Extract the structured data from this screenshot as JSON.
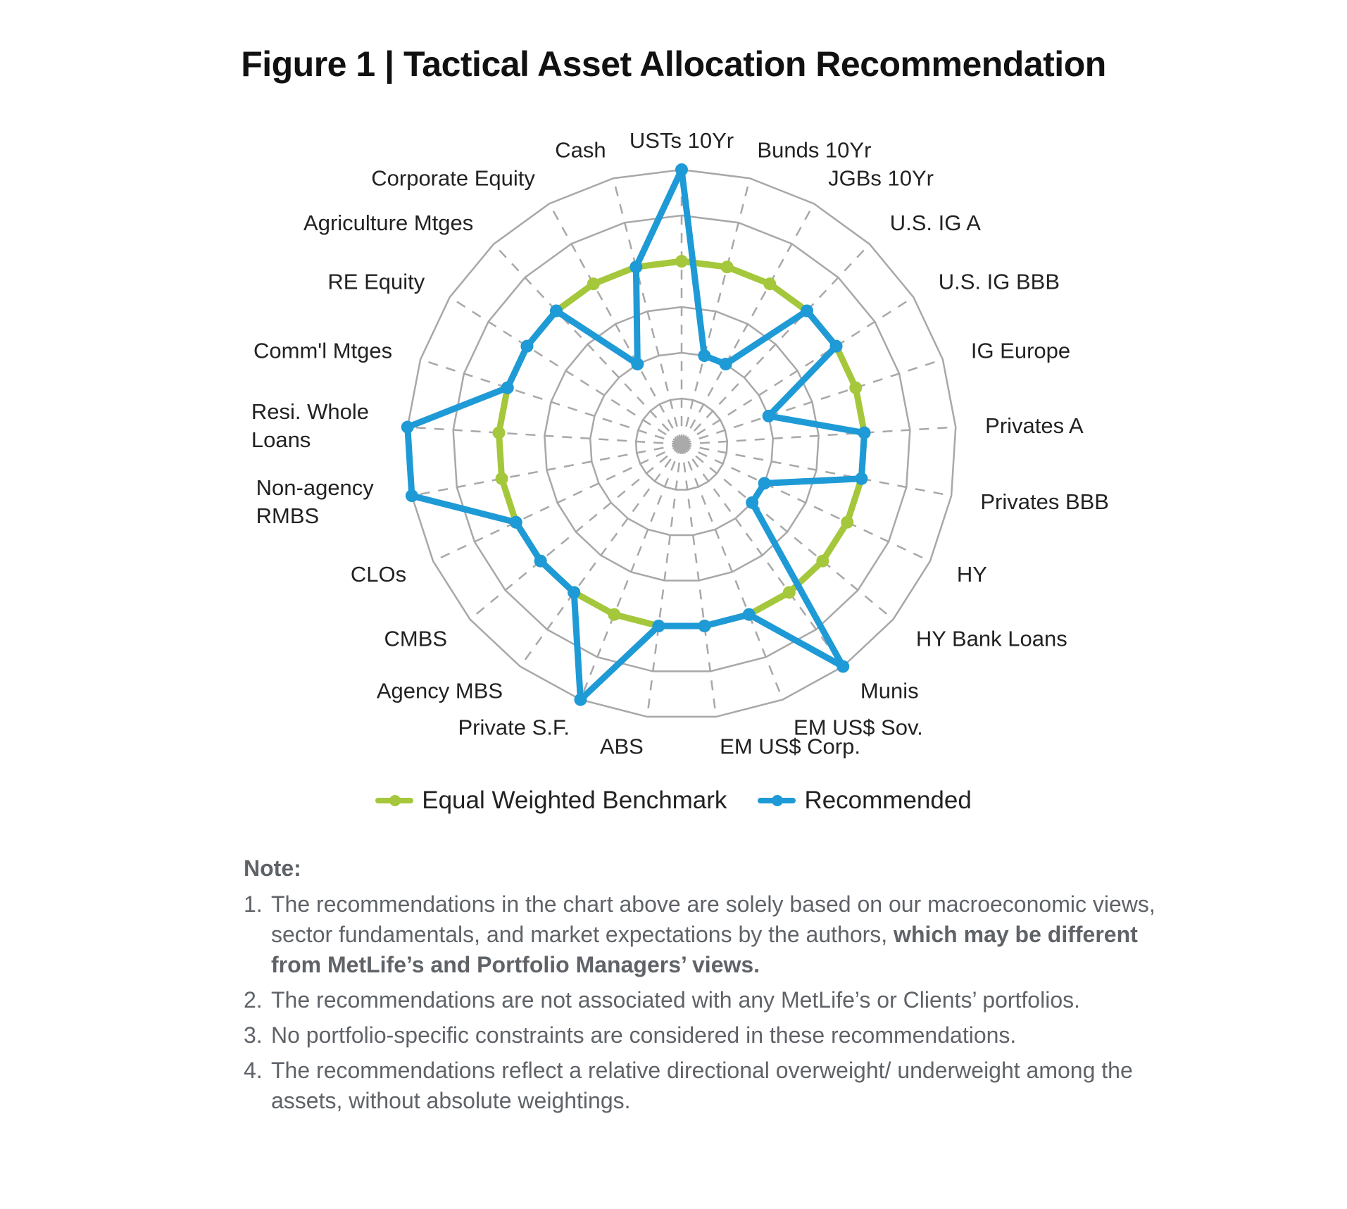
{
  "title": "Figure 1 | Tactical Asset Allocation Recommendation",
  "chart_data": {
    "type": "radar",
    "title": "Figure 1 | Tactical Asset Allocation Recommendation",
    "categories": [
      "USTs 10Yr",
      "Bunds 10Yr",
      "JGBs 10Yr",
      "U.S. IG A",
      "U.S. IG BBB",
      "IG Europe",
      "Privates A",
      "Privates BBB",
      "HY",
      "HY Bank Loans",
      "Munis",
      "EM US$ Sov.",
      "EM US$ Corp.",
      "ABS",
      "Private S.F.",
      "Agency MBS",
      "CMBS",
      "CLOs",
      "Non-agency RMBS",
      "Resi. Whole Loans",
      "Comm'l Mtges",
      "RE Equity",
      "Agriculture Mtges",
      "Corporate Equity",
      "Cash"
    ],
    "category_lines": [
      [
        "USTs 10Yr"
      ],
      [
        "Bunds 10Yr"
      ],
      [
        "JGBs 10Yr"
      ],
      [
        "U.S. IG A"
      ],
      [
        "U.S. IG BBB"
      ],
      [
        "IG Europe"
      ],
      [
        "Privates A"
      ],
      [
        "Privates BBB"
      ],
      [
        "HY"
      ],
      [
        "HY Bank Loans"
      ],
      [
        "Munis"
      ],
      [
        "EM US$ Sov."
      ],
      [
        "EM US$ Corp."
      ],
      [
        "ABS"
      ],
      [
        "Private S.F."
      ],
      [
        "Agency MBS"
      ],
      [
        "CMBS"
      ],
      [
        "CLOs"
      ],
      [
        "Non-agency",
        "RMBS"
      ],
      [
        "Resi. Whole",
        "Loans"
      ],
      [
        "Comm'l Mtges"
      ],
      [
        "RE Equity"
      ],
      [
        "Agriculture Mtges"
      ],
      [
        "Corporate Equity"
      ],
      [
        "Cash"
      ]
    ],
    "series": [
      {
        "name": "Equal Weighted Benchmark",
        "color": "#a5c73b",
        "values": [
          4,
          4,
          4,
          4,
          4,
          4,
          4,
          4,
          4,
          4,
          4,
          4,
          4,
          4,
          4,
          4,
          4,
          4,
          4,
          4,
          4,
          4,
          4,
          4,
          4
        ]
      },
      {
        "name": "Recommended",
        "color": "#1e9ad6",
        "values": [
          6,
          2,
          2,
          4,
          4,
          2,
          4,
          4,
          2,
          2,
          6,
          4,
          4,
          4,
          6,
          4,
          4,
          4,
          6,
          6,
          4,
          4,
          4,
          2,
          4
        ]
      }
    ],
    "rlim": [
      0,
      6
    ],
    "grid": true,
    "axis_ticks_shown": false,
    "legend_placement": "bottom"
  },
  "notes": {
    "heading": "Note:",
    "items": [
      {
        "num": "1.",
        "text": "The recommendations in the chart above are solely based on our macroeconomic views, sector fundamentals, and market expectations by the authors, ",
        "bold": "which may be different from MetLife’s and Portfolio Managers’ views."
      },
      {
        "num": "2.",
        "text": "The recommendations are not associated with any MetLife’s or Clients’ portfolios.",
        "bold": ""
      },
      {
        "num": "3.",
        "text": "No portfolio-specific constraints are considered in these recommendations.",
        "bold": ""
      },
      {
        "num": "4.",
        "text": "The recommendations reflect a relative directional overweight/ underweight among the assets, without absolute weightings.",
        "bold": ""
      }
    ]
  }
}
